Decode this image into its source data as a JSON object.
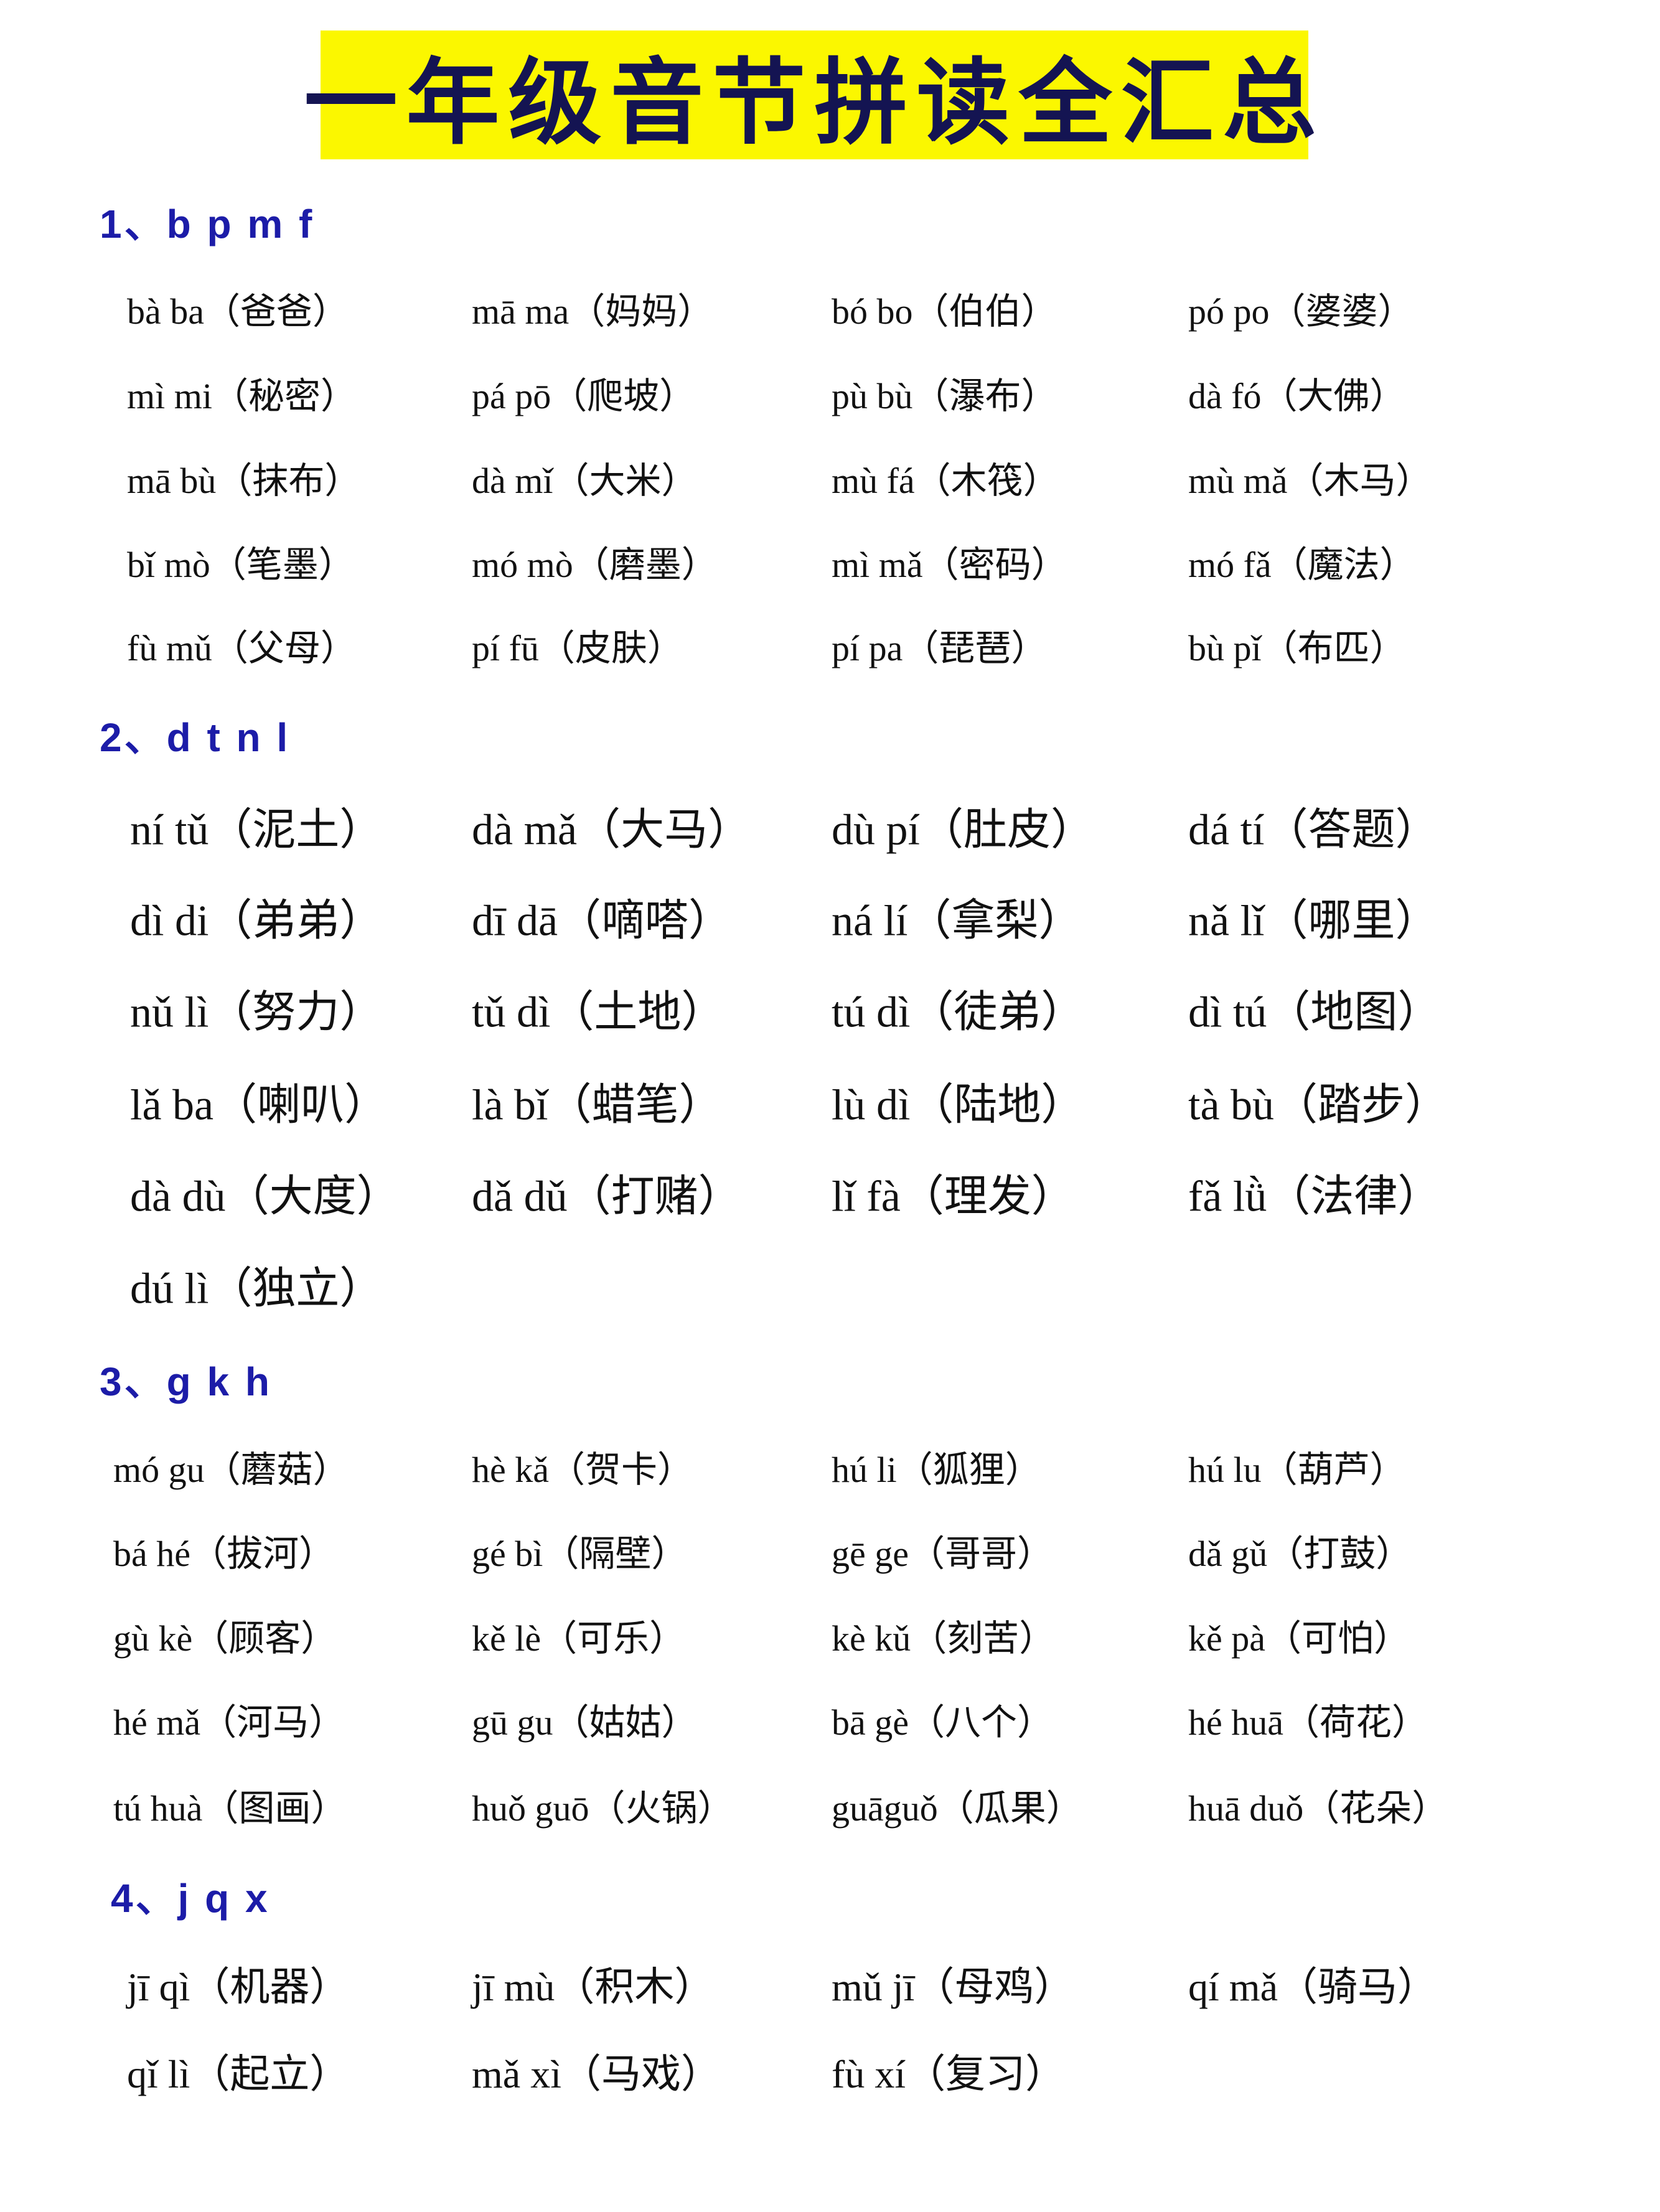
{
  "title": "一年级音节拼读全汇总",
  "colors": {
    "title_background": "#fbf700",
    "heading": "#1c1ca8",
    "text": "#111111"
  },
  "sections": [
    {
      "heading": "1、b p m f",
      "items": [
        "bà ba（爸爸）",
        "mā ma（妈妈）",
        "bó bo（伯伯）",
        "pó po（婆婆）",
        "mì mi（秘密）",
        "pá pō（爬坡）",
        "pù bù（瀑布）",
        "dà fó（大佛）",
        "mā bù（抹布）",
        "dà mǐ（大米）",
        "mù fá（木筏）",
        "mù mǎ（木马）",
        "bǐ mò（笔墨）",
        "mó mò（磨墨）",
        "mì mǎ（密码）",
        "mó fǎ（魔法）",
        "fù mǔ（父母）",
        "pí fū（皮肤）",
        "pí pa（琵琶）",
        "bù pǐ（布匹）"
      ]
    },
    {
      "heading": "2、d t n l",
      "items": [
        "ní tǔ（泥土）",
        "dà mǎ（大马）",
        "dù pí（肚皮）",
        "dá tí（答题）",
        "dì di（弟弟）",
        "dī dā（嘀嗒）",
        "ná lí（拿梨）",
        "nǎ lǐ（哪里）",
        "nǔ lì（努力）",
        "tǔ dì（土地）",
        "tú dì（徒弟）",
        "dì tú（地图）",
        "lǎ ba（喇叭）",
        "là bǐ（蜡笔）",
        "lù dì（陆地）",
        "tà bù（踏步）",
        "dà dù（大度）",
        "dǎ dǔ（打赌）",
        "lǐ fà（理发）",
        "fǎ lǜ（法律）",
        "dú lì（独立）"
      ]
    },
    {
      "heading": "3、g k h",
      "items": [
        "mó gu（蘑菇）",
        "hè kǎ（贺卡）",
        "hú li（狐狸）",
        "hú lu（葫芦）",
        "bá hé（拔河）",
        "gé bì（隔壁）",
        "gē ge（哥哥）",
        "dǎ gǔ（打鼓）",
        "gù kè（顾客）",
        "kě lè（可乐）",
        "kè kǔ（刻苦）",
        "kě pà（可怕）",
        "hé mǎ（河马）",
        "gū gu（姑姑）",
        "bā gè（八个）",
        "hé huā（荷花）",
        "tú huà（图画）",
        "huǒ guō（火锅）",
        "guāguǒ（瓜果）",
        "huā duǒ（花朵）"
      ]
    },
    {
      "heading": "4、j q x",
      "items": [
        "jī qì（机器）",
        "jī mù（积木）",
        "mǔ jī（母鸡）",
        "qí mǎ（骑马）",
        "qǐ lì（起立）",
        "mǎ xì（马戏）",
        "fù xí（复习）"
      ]
    }
  ]
}
